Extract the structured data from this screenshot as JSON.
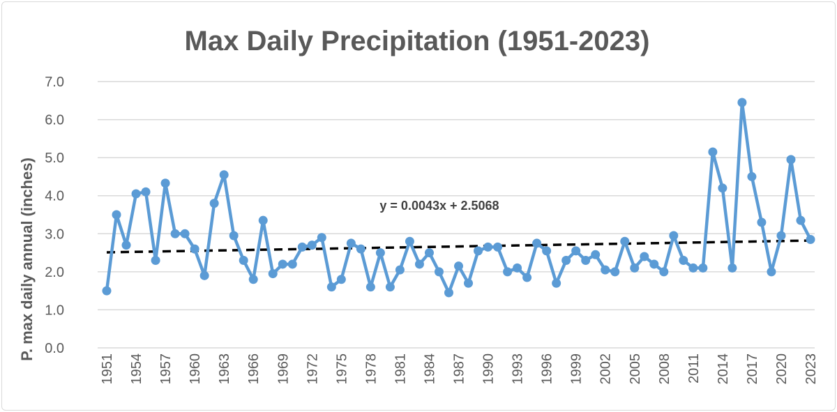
{
  "chart_data": {
    "type": "line",
    "title": "Max Daily Precipitation (1951-2023)",
    "xlabel": "",
    "ylabel": "P. max daily annual (inches)",
    "ylim": [
      0,
      7
    ],
    "yticks": [
      "0.0",
      "1.0",
      "2.0",
      "3.0",
      "4.0",
      "5.0",
      "6.0",
      "7.0"
    ],
    "grid": true,
    "x": [
      1951,
      1952,
      1953,
      1954,
      1955,
      1956,
      1957,
      1958,
      1959,
      1960,
      1961,
      1962,
      1963,
      1964,
      1965,
      1966,
      1967,
      1968,
      1969,
      1970,
      1971,
      1972,
      1973,
      1974,
      1975,
      1976,
      1977,
      1978,
      1979,
      1980,
      1981,
      1982,
      1983,
      1984,
      1985,
      1986,
      1987,
      1988,
      1989,
      1990,
      1991,
      1992,
      1993,
      1994,
      1995,
      1996,
      1997,
      1998,
      1999,
      2000,
      2001,
      2002,
      2003,
      2004,
      2005,
      2006,
      2007,
      2008,
      2009,
      2010,
      2011,
      2012,
      2013,
      2014,
      2015,
      2016,
      2017,
      2018,
      2019,
      2020,
      2021,
      2022,
      2023
    ],
    "xtick_step": 3,
    "values": [
      1.5,
      3.5,
      2.7,
      4.05,
      4.1,
      2.3,
      4.33,
      3.0,
      3.0,
      2.6,
      1.9,
      3.8,
      4.55,
      2.95,
      2.3,
      1.8,
      3.35,
      1.95,
      2.2,
      2.2,
      2.65,
      2.7,
      2.9,
      1.6,
      1.8,
      2.75,
      2.6,
      1.6,
      2.5,
      1.6,
      2.05,
      2.8,
      2.2,
      2.5,
      2.0,
      1.45,
      2.15,
      1.7,
      2.55,
      2.65,
      2.65,
      2.0,
      2.1,
      1.85,
      2.75,
      2.55,
      1.7,
      2.3,
      2.55,
      2.3,
      2.45,
      2.05,
      2.0,
      2.8,
      2.1,
      2.4,
      2.2,
      2.0,
      2.95,
      2.3,
      2.1,
      2.1,
      5.15,
      4.2,
      2.1,
      6.45,
      4.5,
      3.3,
      2.0,
      2.95,
      4.95,
      3.35,
      2.85
    ],
    "series_color": "#5b9bd5",
    "trendline": {
      "type": "linear",
      "slope": 0.0043,
      "intercept": 2.5068,
      "equation": "y = 0.0043x + 2.5068",
      "color": "#000000",
      "style": "dashed"
    }
  }
}
